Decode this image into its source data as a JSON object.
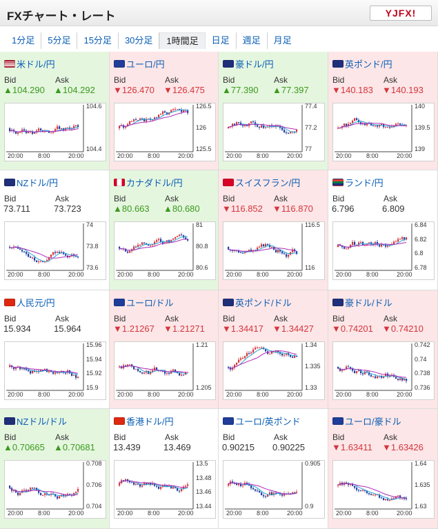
{
  "header": {
    "title": "FXチャート・レート",
    "logo_text": "YJFX!"
  },
  "tabs": [
    "1分足",
    "5分足",
    "15分足",
    "30分足",
    "1時間足",
    "日足",
    "週足",
    "月足"
  ],
  "active_tab": "1時間足",
  "labels": {
    "bid": "Bid",
    "ask": "Ask"
  },
  "colors": {
    "up": "#3a9a1d",
    "down": "#d4353c",
    "up_bg": "#e5f6df",
    "down_bg": "#fde6e7",
    "link": "#0b5fb6",
    "candle_up": "#d4353c",
    "candle_down": "#1d3fa3",
    "ma_blue": "#2aa6d6",
    "ma_purple": "#b02ab6"
  },
  "x_labels": [
    "20:00",
    "8:00",
    "20:00"
  ],
  "pairs": [
    {
      "name": "米ドル/円",
      "dir": "up",
      "bid": "▲104.290",
      "ask": "▲104.292",
      "yticks": [
        "104.6",
        "104.4"
      ],
      "flag": "us"
    },
    {
      "name": "ユーロ/円",
      "dir": "down",
      "bid": "▼126.470",
      "ask": "▼126.475",
      "yticks": [
        "126.5",
        "126",
        "125.5"
      ],
      "flag": "eu"
    },
    {
      "name": "豪ドル/円",
      "dir": "up",
      "bid": "▲77.390",
      "ask": "▲77.397",
      "yticks": [
        "77.4",
        "77.2",
        "77"
      ],
      "flag": "au"
    },
    {
      "name": "英ポンド/円",
      "dir": "down",
      "bid": "▼140.183",
      "ask": "▼140.193",
      "yticks": [
        "140",
        "139.5",
        "139"
      ],
      "flag": "gb"
    },
    {
      "name": "NZドル/円",
      "dir": "flat",
      "bid": "73.711",
      "ask": "73.723",
      "yticks": [
        "74",
        "73.8",
        "73.6"
      ],
      "flag": "nz"
    },
    {
      "name": "カナダドル/円",
      "dir": "up",
      "bid": "▲80.663",
      "ask": "▲80.680",
      "yticks": [
        "81",
        "80.8",
        "80.6"
      ],
      "flag": "ca"
    },
    {
      "name": "スイスフラン/円",
      "dir": "down",
      "bid": "▼116.852",
      "ask": "▼116.870",
      "yticks": [
        "116.5",
        "116"
      ],
      "flag": "ch"
    },
    {
      "name": "ランド/円",
      "dir": "flat",
      "bid": "6.796",
      "ask": "6.809",
      "yticks": [
        "6.84",
        "6.82",
        "6.8",
        "6.78"
      ],
      "flag": "za"
    },
    {
      "name": "人民元/円",
      "dir": "flat",
      "bid": "15.934",
      "ask": "15.964",
      "yticks": [
        "15.96",
        "15.94",
        "15.92",
        "15.9"
      ],
      "flag": "cn"
    },
    {
      "name": "ユーロ/ドル",
      "dir": "down",
      "bid": "▼1.21267",
      "ask": "▼1.21271",
      "yticks": [
        "1.21",
        "1.205"
      ],
      "flag": "eu"
    },
    {
      "name": "英ポンド/ドル",
      "dir": "down",
      "bid": "▼1.34417",
      "ask": "▼1.34427",
      "yticks": [
        "1.34",
        "1.335",
        "1.33"
      ],
      "flag": "gb"
    },
    {
      "name": "豪ドル/ドル",
      "dir": "down",
      "bid": "▼0.74201",
      "ask": "▼0.74210",
      "yticks": [
        "0.742",
        "0.74",
        "0.738",
        "0.736"
      ],
      "flag": "au"
    },
    {
      "name": "NZドル/ドル",
      "dir": "up",
      "bid": "▲0.70665",
      "ask": "▲0.70681",
      "yticks": [
        "0.708",
        "0.706",
        "0.704"
      ],
      "flag": "nz"
    },
    {
      "name": "香港ドル/円",
      "dir": "flat",
      "bid": "13.439",
      "ask": "13.469",
      "yticks": [
        "13.5",
        "13.48",
        "13.46",
        "13.44"
      ],
      "flag": "hk"
    },
    {
      "name": "ユーロ/英ポンド",
      "dir": "flat",
      "bid": "0.90215",
      "ask": "0.90225",
      "yticks": [
        "0.905",
        "0.9"
      ],
      "flag": "eu"
    },
    {
      "name": "ユーロ/豪ドル",
      "dir": "down",
      "bid": "▼1.63411",
      "ask": "▼1.63426",
      "yticks": [
        "1.64",
        "1.635",
        "1.63"
      ],
      "flag": "eu"
    }
  ]
}
